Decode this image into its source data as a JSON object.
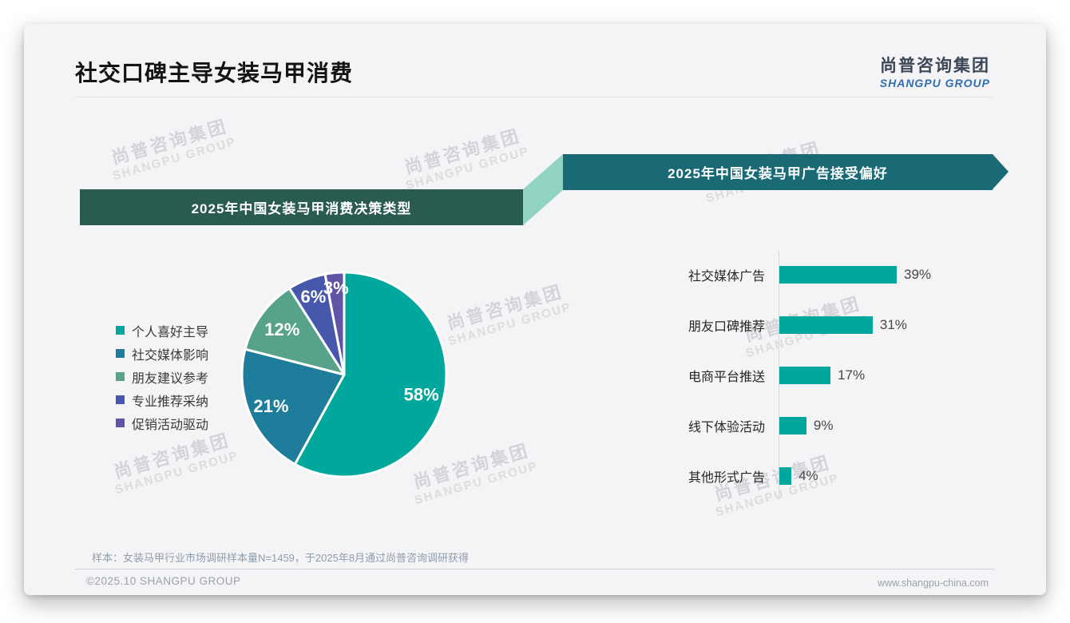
{
  "page": {
    "title": "社交口碑主导女装马甲消费",
    "logo": {
      "cn": "尚普咨询集团",
      "en": "SHANGPU GROUP"
    },
    "watermark": {
      "cn": "尚普咨询集团",
      "en": "SHANGPU GROUP"
    },
    "footer": {
      "sample_note": "样本：女装马甲行业市场调研样本量N=1459，于2025年8月通过尚普咨询调研获得",
      "copyright": "©2025.10 SHANGPU GROUP",
      "website": "www.shangpu-china.com"
    }
  },
  "colors": {
    "card_bg": "#f4f4f6",
    "left_banner": "#2a5b50",
    "right_banner": "#196a75",
    "connector_mint": "#8fd3c0",
    "accent_teal": "#00a79c",
    "logo_cn": "#3c4656",
    "logo_en": "#2f6eb0"
  },
  "chart_data": [
    {
      "type": "pie",
      "title": "2025年中国女装马甲消费决策类型",
      "categories": [
        "个人喜好主导",
        "社交媒体影响",
        "朋友建议参考",
        "专业推荐采纳",
        "促销活动驱动"
      ],
      "values": [
        58,
        21,
        12,
        6,
        3
      ],
      "unit": "%",
      "labels": [
        "58%",
        "21%",
        "12%",
        "6%",
        "3%"
      ],
      "colors": [
        "#00a79c",
        "#1e7d9b",
        "#56a28a",
        "#4757ac",
        "#6153a6"
      ],
      "legend_position": "left",
      "start_angle_deg": 0,
      "direction": "clockwise"
    },
    {
      "type": "bar",
      "title": "2025年中国女装马甲广告接受偏好",
      "orientation": "horizontal",
      "categories": [
        "社交媒体广告",
        "朋友口碑推荐",
        "电商平台推送",
        "线下体验活动",
        "其他形式广告"
      ],
      "values": [
        39,
        31,
        17,
        9,
        4
      ],
      "unit": "%",
      "value_labels": [
        "39%",
        "31%",
        "17%",
        "9%",
        "4%"
      ],
      "bar_color": "#00a79c",
      "xlim": [
        0,
        45
      ],
      "grid": false
    }
  ]
}
